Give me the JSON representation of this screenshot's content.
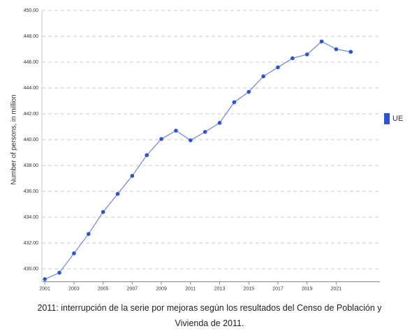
{
  "chart_data": {
    "type": "line",
    "y_label": "Number of persons, in million",
    "x": [
      2001,
      2002,
      2003,
      2004,
      2005,
      2006,
      2007,
      2008,
      2009,
      2010,
      2011,
      2012,
      2013,
      2014,
      2015,
      2016,
      2017,
      2018,
      2019,
      2020,
      2021,
      2022
    ],
    "series": [
      {
        "name": "UE",
        "color": "#2a52d6",
        "values": [
          429.2,
          429.7,
          431.2,
          432.7,
          434.4,
          435.8,
          437.2,
          438.8,
          440.05,
          440.7,
          439.95,
          440.6,
          441.3,
          442.9,
          443.7,
          444.9,
          445.6,
          446.3,
          446.6,
          447.6,
          447.0,
          446.8
        ]
      }
    ],
    "xlim": [
      2000.8,
      2024
    ],
    "xticks": [
      2001,
      2003,
      2005,
      2007,
      2009,
      2011,
      2013,
      2015,
      2017,
      2019,
      2021
    ],
    "ylim": [
      429,
      450
    ],
    "yticks": [
      {
        "value": 430,
        "label": "430.00"
      },
      {
        "value": 432,
        "label": "432.00"
      },
      {
        "value": 434,
        "label": "434.00"
      },
      {
        "value": 436,
        "label": "436.00"
      },
      {
        "value": 438,
        "label": "438.00"
      },
      {
        "value": 440,
        "label": "440.00"
      },
      {
        "value": 442,
        "label": "442.00"
      },
      {
        "value": 444,
        "label": "444.00"
      },
      {
        "value": 446,
        "label": "446.00"
      },
      {
        "value": 448,
        "label": "448.00"
      },
      {
        "value": 450,
        "label": "450.00"
      }
    ],
    "grid": true,
    "legend": "right",
    "note": "2011: interrupción de la serie por mejoras según los resultados del Censo de Población y Vivienda de 2011."
  }
}
